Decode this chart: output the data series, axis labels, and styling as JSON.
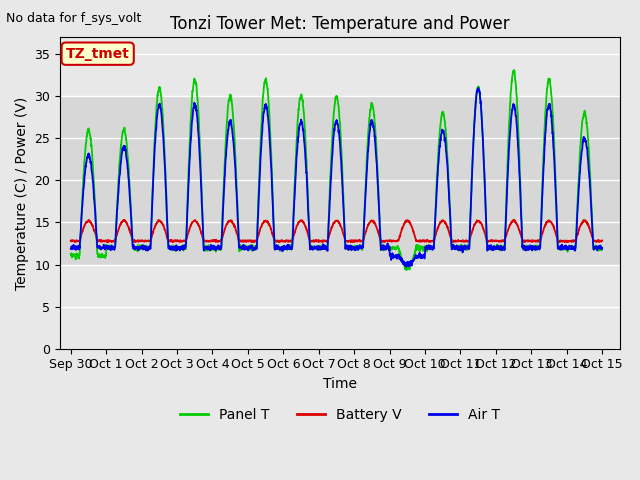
{
  "title": "Tonzi Tower Met: Temperature and Power",
  "top_left_text": "No data for f_sys_volt",
  "ylabel": "Temperature (C) / Power (V)",
  "xlabel": "Time",
  "ylim": [
    0,
    37
  ],
  "yticks": [
    0,
    5,
    10,
    15,
    20,
    25,
    30,
    35
  ],
  "xlim_min": -0.3,
  "xlim_max": 15.5,
  "xtick_labels": [
    "Sep 30",
    "Oct 1",
    "Oct 2",
    "Oct 3",
    "Oct 4",
    "Oct 5",
    "Oct 6",
    "Oct 7",
    "Oct 8",
    "Oct 9",
    "Oct 10",
    "Oct 11",
    "Oct 12",
    "Oct 13",
    "Oct 14",
    "Oct 15"
  ],
  "xtick_positions": [
    0,
    1,
    2,
    3,
    4,
    5,
    6,
    7,
    8,
    9,
    10,
    11,
    12,
    13,
    14,
    15
  ],
  "bg_color": "#e8e8e8",
  "plot_bg_color": "#e8e8e8",
  "grid_color": "#ffffff",
  "title_fontsize": 12,
  "label_fontsize": 10,
  "tick_fontsize": 9,
  "annotation_box": {
    "text": "TZ_tmet",
    "facecolor": "#ffffcc",
    "edgecolor": "#cc0000",
    "textcolor": "#cc0000",
    "fontsize": 10
  },
  "legend": {
    "panel_t": {
      "label": "Panel T",
      "color": "#00cc00"
    },
    "battery_v": {
      "label": "Battery V",
      "color": "#dd0000"
    },
    "air_t": {
      "label": "Air T",
      "color": "#0000ee"
    }
  },
  "shaded_band": {
    "ymin": 10,
    "ymax": 30,
    "color": "#cccccc",
    "alpha": 0.6
  },
  "panel_day_peaks": [
    26,
    26,
    31,
    32,
    30,
    32,
    30,
    30,
    29,
    9.5,
    28,
    31,
    33,
    32
  ],
  "air_day_peaks": [
    23,
    24,
    29,
    29,
    27,
    29,
    27,
    27,
    27,
    10,
    26,
    31,
    29,
    29
  ],
  "panel_night_min": [
    11,
    12,
    12,
    12,
    12,
    12,
    12,
    12,
    12,
    12,
    12,
    12,
    12,
    12
  ],
  "air_night_min": [
    12,
    12,
    12,
    12,
    12,
    12,
    12,
    12,
    12,
    11,
    12,
    12,
    12,
    12
  ],
  "battery_base": 12.8,
  "battery_peak": 15.2,
  "n_days": 15
}
